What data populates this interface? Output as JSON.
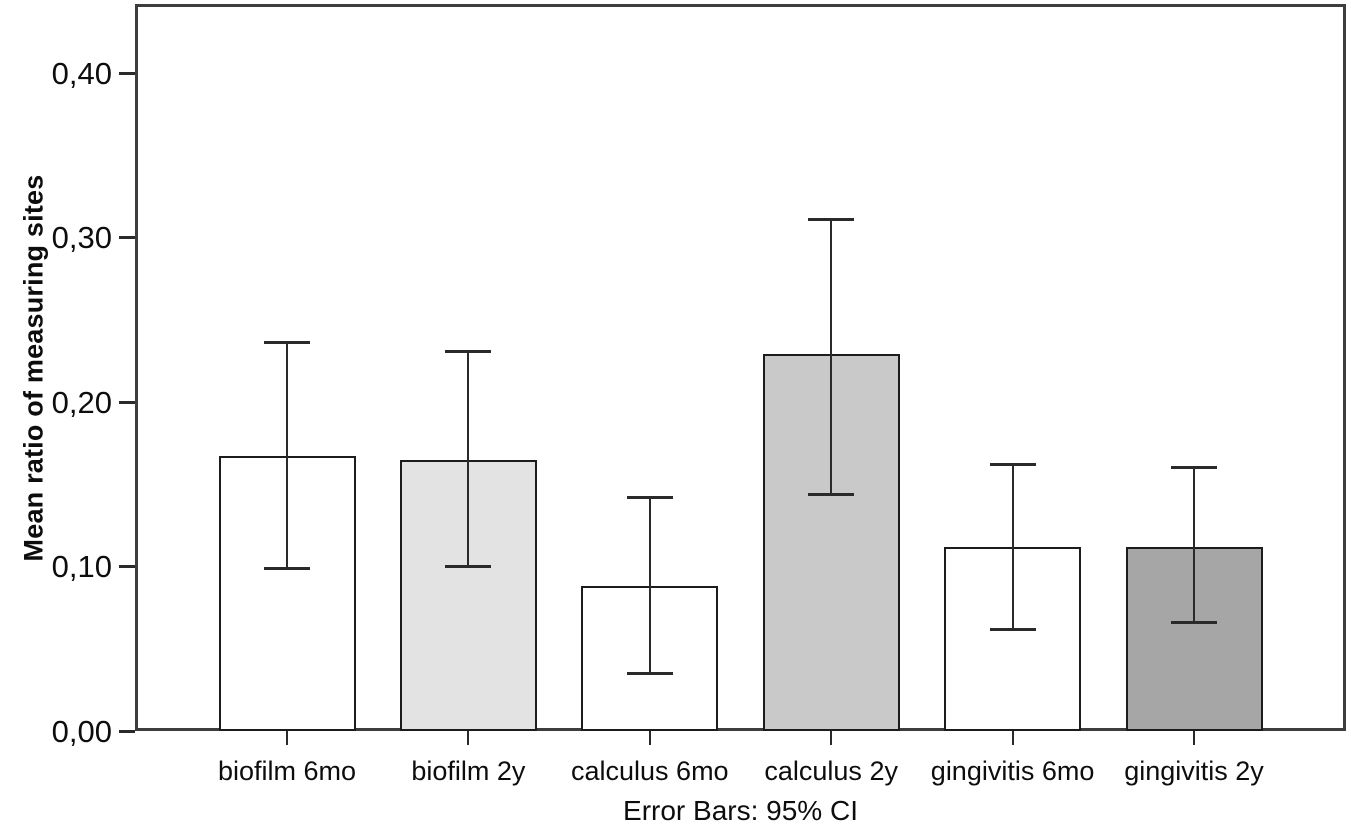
{
  "chart_data": {
    "type": "bar",
    "title": "",
    "ylabel": "Mean ratio of measuring sites",
    "xlabel": "",
    "caption": "Error Bars: 95% CI",
    "categories": [
      "biofilm 6mo",
      "biofilm 2y",
      "calculus 6mo",
      "calculus 2y",
      "gingivitis 6mo",
      "gingivitis 2y"
    ],
    "values": [
      0.167,
      0.165,
      0.088,
      0.229,
      0.112,
      0.112
    ],
    "ci_upper": [
      0.236,
      0.231,
      0.142,
      0.311,
      0.162,
      0.16
    ],
    "ci_lower": [
      0.099,
      0.1,
      0.035,
      0.144,
      0.062,
      0.066
    ],
    "bar_fill_colors": [
      "#ffffff",
      "#e3e3e3",
      "#ffffff",
      "#c9c9c9",
      "#ffffff",
      "#a6a6a6"
    ],
    "bar_border_color": "#1c1c1c",
    "error_bar_color": "#2a2a2a",
    "axis_frame_color": "#3d3d3d",
    "ylim": [
      0,
      0.442
    ],
    "yticks": [
      0,
      0.1,
      0.2,
      0.3,
      0.4
    ],
    "ytick_labels": [
      "0,00",
      "0,10",
      "0,20",
      "0,30",
      "0,40"
    ],
    "grid": false,
    "legend": "none"
  }
}
